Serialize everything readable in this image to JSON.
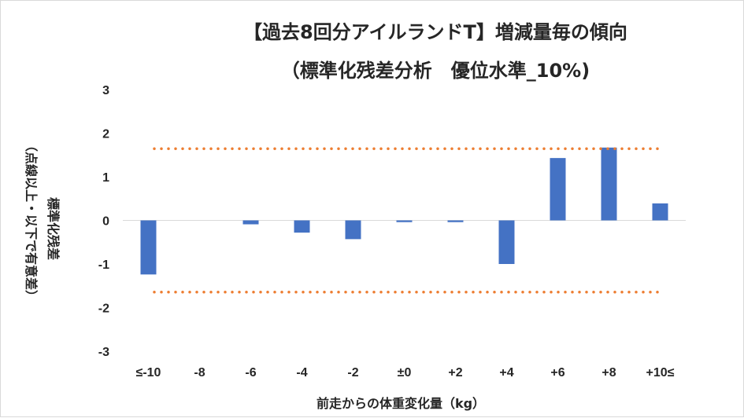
{
  "chart_data": {
    "type": "bar",
    "title_line1": "【過去8回分アイルランドT】増減量毎の傾向",
    "title_line2": "（標準化残差分析　優位水準_10%)",
    "xlabel": "前走からの体重変化量（kg）",
    "ylabel_line1": "標準化残差",
    "ylabel_line2": "（点線以上・以下で有意差）",
    "categories": [
      "≤-10",
      "-8",
      "-6",
      "-4",
      "-2",
      "±0",
      "+2",
      "+4",
      "+6",
      "+8",
      "+10≤"
    ],
    "values": [
      -1.24,
      0,
      -0.09,
      -0.28,
      -0.43,
      -0.04,
      -0.04,
      -1.0,
      1.43,
      1.67,
      0.39
    ],
    "ylim": [
      -3,
      3
    ],
    "yticks": [
      "-3",
      "-2",
      "-1",
      "0",
      "1",
      "2",
      "3"
    ],
    "thresholds": [
      1.645,
      -1.645
    ],
    "bar_color": "#4472c4",
    "threshold_color": "#ed7d31",
    "axis_color": "#d9d9d9",
    "grid": false,
    "legend": "none"
  }
}
